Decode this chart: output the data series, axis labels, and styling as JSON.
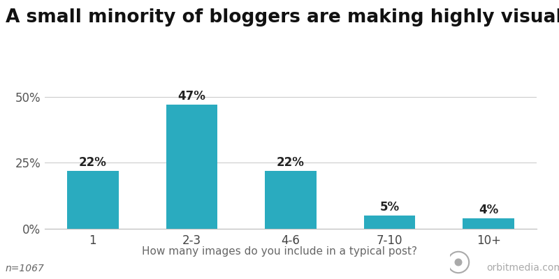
{
  "title": "A small minority of bloggers are making highly visual content.",
  "categories": [
    "1",
    "2-3",
    "4-6",
    "7-10",
    "10+"
  ],
  "values": [
    22,
    47,
    22,
    5,
    4
  ],
  "bar_color": "#2AABBF",
  "xlabel": "How many images do you include in a typical post?",
  "footnote": "n=1067",
  "yticks": [
    0,
    25,
    50
  ],
  "ylim": [
    0,
    55
  ],
  "title_fontsize": 19,
  "label_fontsize": 12,
  "tick_fontsize": 12,
  "xlabel_fontsize": 11,
  "footnote_fontsize": 10,
  "background_color": "#ffffff",
  "bar_width": 0.52
}
